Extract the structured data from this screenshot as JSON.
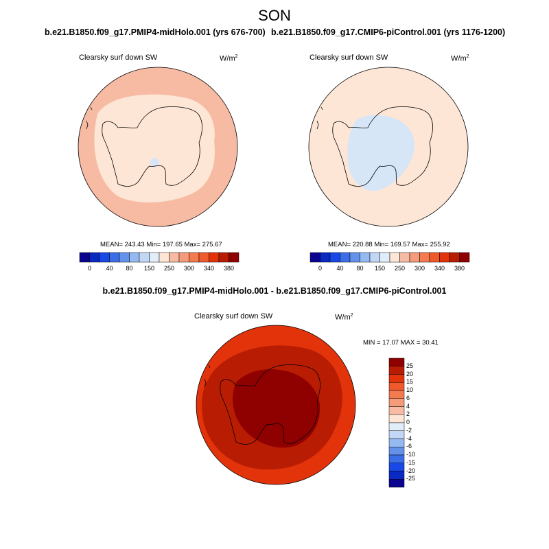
{
  "figure": {
    "season": "SON",
    "variable": "Clearsky surf down SW",
    "units_base": "W/m",
    "units_exp": "2",
    "colors": {
      "light_fill": "#fde6d6",
      "medium_fill": "#f7bba3",
      "blue_fill": "#d6e6f7",
      "diff_outer": "#e2330b",
      "diff_mid": "#b81d04",
      "diff_inner": "#8f0000"
    }
  },
  "panels": [
    {
      "case": "b.e21.B1850.f09_g17.PMIP4-midHolo.001 (yrs 676-700)",
      "stats": "MEAN= 243.43  Min= 197.65  Max= 275.67"
    },
    {
      "case": "b.e21.B1850.f09_g17.CMIP6-piControl.001 (yrs 1176-1200)",
      "stats": "MEAN= 220.88  Min= 169.57  Max= 255.92"
    }
  ],
  "diff": {
    "title": "b.e21.B1850.f09_g17.PMIP4-midHolo.001 - b.e21.B1850.f09_g17.CMIP6-piControl.001",
    "stats": "MIN =  17.07 MAX =  30.41"
  },
  "chart_data": [
    {
      "type": "heatmap",
      "projection": "south polar stereographic",
      "title": "Clearsky surf down SW",
      "case": "b.e21.B1850.f09_g17.PMIP4-midHolo.001 (yrs 676-700)",
      "units": "W/m2",
      "mean": 243.43,
      "min": 197.65,
      "max": 275.67,
      "colorbar_ticks": [
        "0",
        "40",
        "80",
        "150",
        "250",
        "300",
        "340",
        "380"
      ],
      "colorbar_colors": [
        "#0a0590",
        "#0a28c2",
        "#1848e6",
        "#3b6ee6",
        "#6492eb",
        "#95b9f1",
        "#c2d7f5",
        "#e2edfa",
        "#fde6d6",
        "#f7bba3",
        "#f59a7a",
        "#f47a50",
        "#ef5a2c",
        "#e2330b",
        "#b81d04",
        "#8f0000"
      ]
    },
    {
      "type": "heatmap",
      "projection": "south polar stereographic",
      "title": "Clearsky surf down SW",
      "case": "b.e21.B1850.f09_g17.CMIP6-piControl.001 (yrs 1176-1200)",
      "units": "W/m2",
      "mean": 220.88,
      "min": 169.57,
      "max": 255.92,
      "colorbar_ticks": [
        "0",
        "40",
        "80",
        "150",
        "250",
        "300",
        "340",
        "380"
      ]
    },
    {
      "type": "heatmap",
      "projection": "south polar stereographic",
      "title": "Clearsky surf down SW",
      "case": "b.e21.B1850.f09_g17.PMIP4-midHolo.001 - b.e21.B1850.f09_g17.CMIP6-piControl.001",
      "units": "W/m2",
      "min": 17.07,
      "max": 30.41,
      "colorbar_ticks": [
        "25",
        "20",
        "15",
        "10",
        "6",
        "4",
        "2",
        "0",
        "-2",
        "-4",
        "-6",
        "-10",
        "-15",
        "-20",
        "-25"
      ],
      "colorbar_colors": [
        "#8f0000",
        "#b81d04",
        "#e2330b",
        "#ef5a2c",
        "#f47a50",
        "#f59a7a",
        "#f7bba3",
        "#fde6d6",
        "#e2edfa",
        "#c2d7f5",
        "#95b9f1",
        "#6492eb",
        "#3b6ee6",
        "#1848e6",
        "#0a28c2",
        "#0a0590"
      ]
    }
  ]
}
